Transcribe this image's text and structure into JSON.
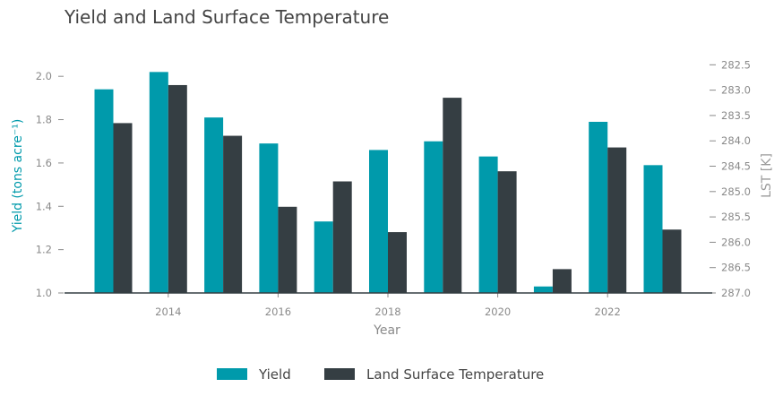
{
  "chart_data": {
    "type": "bar",
    "title": "Yield and Land Surface Temperature",
    "xlabel": "Year",
    "ylabel_left": "Yield (tons acre⁻¹)",
    "ylabel_right": "LST [K]",
    "categories": [
      2013,
      2014,
      2015,
      2016,
      2017,
      2018,
      2019,
      2020,
      2021,
      2022,
      2023
    ],
    "x_tick_labels": [
      "2014",
      "2016",
      "2018",
      "2020",
      "2022"
    ],
    "x_tick_values": [
      2014,
      2016,
      2018,
      2020,
      2022
    ],
    "ylim_left": [
      1.0,
      2.1
    ],
    "yticks_left": [
      "1.0",
      "1.2",
      "1.4",
      "1.6",
      "1.8",
      "2.0"
    ],
    "ylim_right": [
      287.0,
      282.3
    ],
    "right_axis_inverted": true,
    "yticks_right": [
      "282.5",
      "283.0",
      "283.5",
      "284.0",
      "284.5",
      "285.0",
      "285.5",
      "286.0",
      "286.5",
      "287.0"
    ],
    "series": [
      {
        "name": "Yield",
        "axis": "left",
        "color": "#009aab",
        "values": [
          1.94,
          2.02,
          1.81,
          1.69,
          1.33,
          1.66,
          1.7,
          1.63,
          1.03,
          1.79,
          1.59
        ]
      },
      {
        "name": "Land Surface Temperature",
        "axis": "right",
        "color": "#353e43",
        "values": [
          283.65,
          282.9,
          283.9,
          285.3,
          284.8,
          285.8,
          283.15,
          284.6,
          286.53,
          284.13,
          285.75
        ]
      }
    ],
    "grid": false,
    "legend": "bottom-center"
  }
}
